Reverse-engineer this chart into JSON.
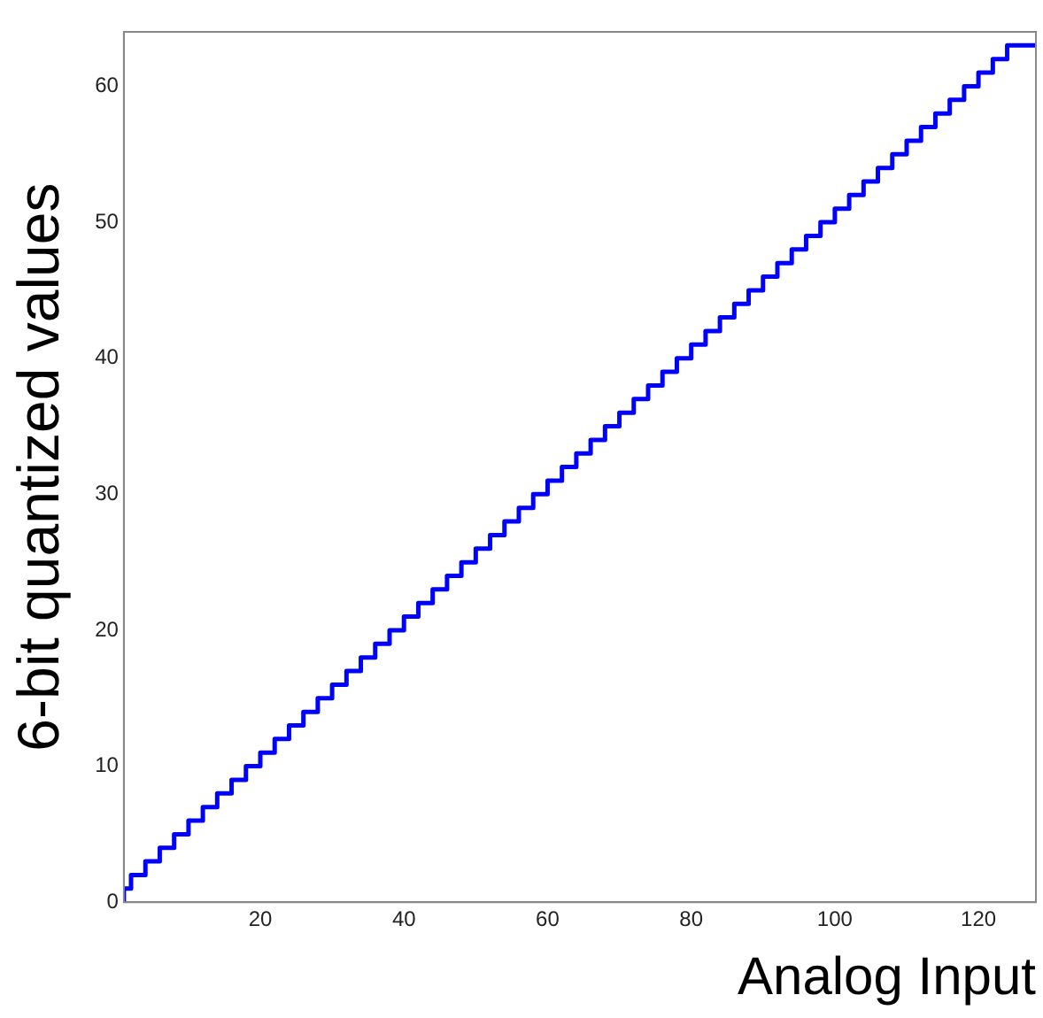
{
  "chart_data": {
    "type": "step",
    "xlabel": "Analog Input",
    "ylabel": "6-bit quantized values",
    "x": [
      1,
      2,
      4,
      6,
      8,
      10,
      12,
      14,
      16,
      18,
      20,
      22,
      24,
      26,
      28,
      30,
      32,
      34,
      36,
      38,
      40,
      42,
      44,
      46,
      48,
      50,
      52,
      54,
      56,
      58,
      60,
      62,
      64,
      66,
      68,
      70,
      72,
      74,
      76,
      78,
      80,
      82,
      84,
      86,
      88,
      90,
      92,
      94,
      96,
      98,
      100,
      102,
      104,
      106,
      108,
      110,
      112,
      114,
      116,
      118,
      120,
      122,
      124,
      126,
      128
    ],
    "values": [
      0,
      1,
      2,
      3,
      4,
      5,
      6,
      7,
      8,
      9,
      10,
      11,
      12,
      13,
      14,
      15,
      16,
      17,
      18,
      19,
      20,
      21,
      22,
      23,
      24,
      25,
      26,
      27,
      28,
      29,
      30,
      31,
      32,
      33,
      34,
      35,
      36,
      37,
      38,
      39,
      40,
      41,
      42,
      43,
      44,
      45,
      46,
      47,
      48,
      49,
      50,
      51,
      52,
      53,
      54,
      55,
      56,
      57,
      58,
      59,
      60,
      61,
      62,
      63,
      63
    ],
    "color": "#0000ff",
    "xlim": [
      1,
      128
    ],
    "xticks": [
      20,
      40,
      60,
      80,
      100,
      120
    ],
    "ylim": [
      0,
      64
    ],
    "yticks": [
      0,
      10,
      20,
      30,
      40,
      50,
      60
    ],
    "grid": false,
    "legend": false
  }
}
